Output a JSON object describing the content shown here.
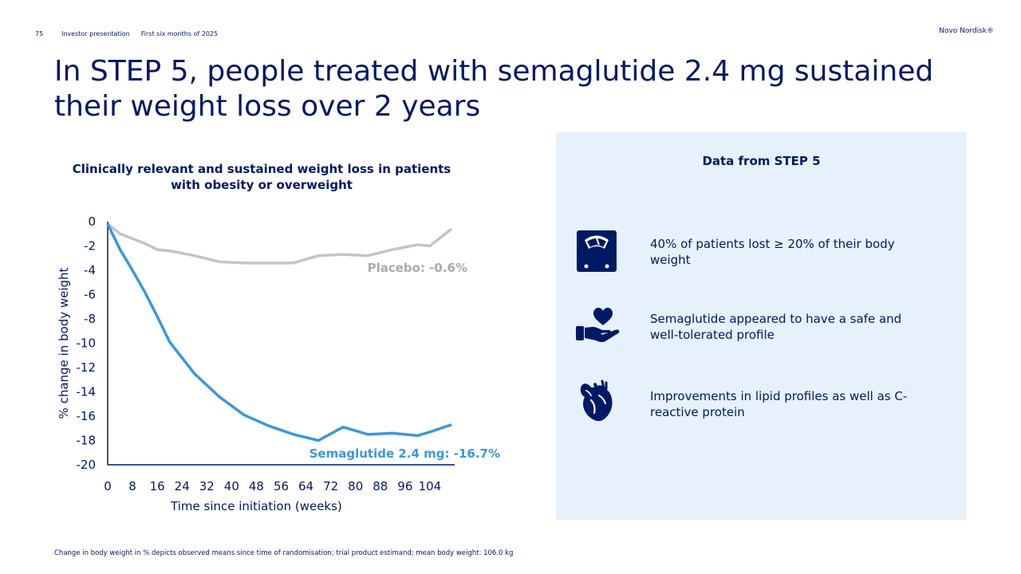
{
  "header": {
    "page_number": "75",
    "deck_title": "Investor presentation",
    "period": "First six months of 2025",
    "brand": "Novo Nordisk®"
  },
  "title": "In STEP 5, people treated with semaglutide 2.4 mg sustained their weight loss over 2 years",
  "chart_title": "Clinically relevant and sustained weight loss in patients with obesity or overweight",
  "chart_data": {
    "type": "line",
    "title": "Clinically relevant and sustained weight loss in patients with obesity or overweight",
    "xlabel": "Time since initiation (weeks)",
    "ylabel": "% change in body weight",
    "xlim": [
      0,
      112
    ],
    "ylim": [
      -20,
      0
    ],
    "x_ticks": [
      0,
      8,
      16,
      24,
      32,
      40,
      48,
      56,
      64,
      72,
      80,
      88,
      96,
      104
    ],
    "y_ticks": [
      0,
      -2,
      -4,
      -6,
      -8,
      -10,
      -12,
      -14,
      -16,
      -18,
      -20
    ],
    "series": [
      {
        "name": "Placebo",
        "label": "Placebo: -0.6%",
        "color": "#c3c3cc",
        "x": [
          0,
          4,
          8,
          12,
          16,
          20,
          28,
          36,
          44,
          52,
          60,
          68,
          76,
          84,
          92,
          100,
          104,
          111
        ],
        "values": [
          -0.2,
          -1.0,
          -1.4,
          -1.8,
          -2.3,
          -2.4,
          -2.8,
          -3.3,
          -3.4,
          -3.4,
          -3.4,
          -2.8,
          -2.7,
          -2.8,
          -2.3,
          -1.9,
          -2.0,
          -0.6
        ]
      },
      {
        "name": "Semaglutide 2.4 mg",
        "label": "Semaglutide 2.4 mg: -16.7%",
        "color": "#3b97de",
        "x": [
          0,
          4,
          8,
          12,
          16,
          20,
          28,
          36,
          44,
          52,
          60,
          68,
          76,
          84,
          92,
          100,
          104,
          111
        ],
        "values": [
          -0.2,
          -2.3,
          -4.0,
          -5.8,
          -7.8,
          -9.9,
          -12.5,
          -14.4,
          -15.9,
          -16.8,
          -17.5,
          -18.0,
          -16.9,
          -17.5,
          -17.4,
          -17.6,
          -17.3,
          -16.7
        ]
      }
    ]
  },
  "panel": {
    "title": "Data from STEP 5",
    "items": [
      {
        "icon": "scale-icon",
        "text": "40% of patients lost ≥ 20% of their body weight"
      },
      {
        "icon": "heart-in-hand-icon",
        "text": "Semaglutide appeared to have a safe and well-tolerated profile"
      },
      {
        "icon": "anatomical-heart-icon",
        "text": "Improvements in lipid profiles as well as C-reactive protein"
      }
    ]
  },
  "footnote": "Change in body weight in % depicts observed means since time of randomisation; trial product estimand; mean body weight: 106.0 kg",
  "colors": {
    "navy": "#001965",
    "panel_bg": "#e6f1fb",
    "semaglutide": "#3b97de",
    "placebo": "#c3c3cc"
  }
}
